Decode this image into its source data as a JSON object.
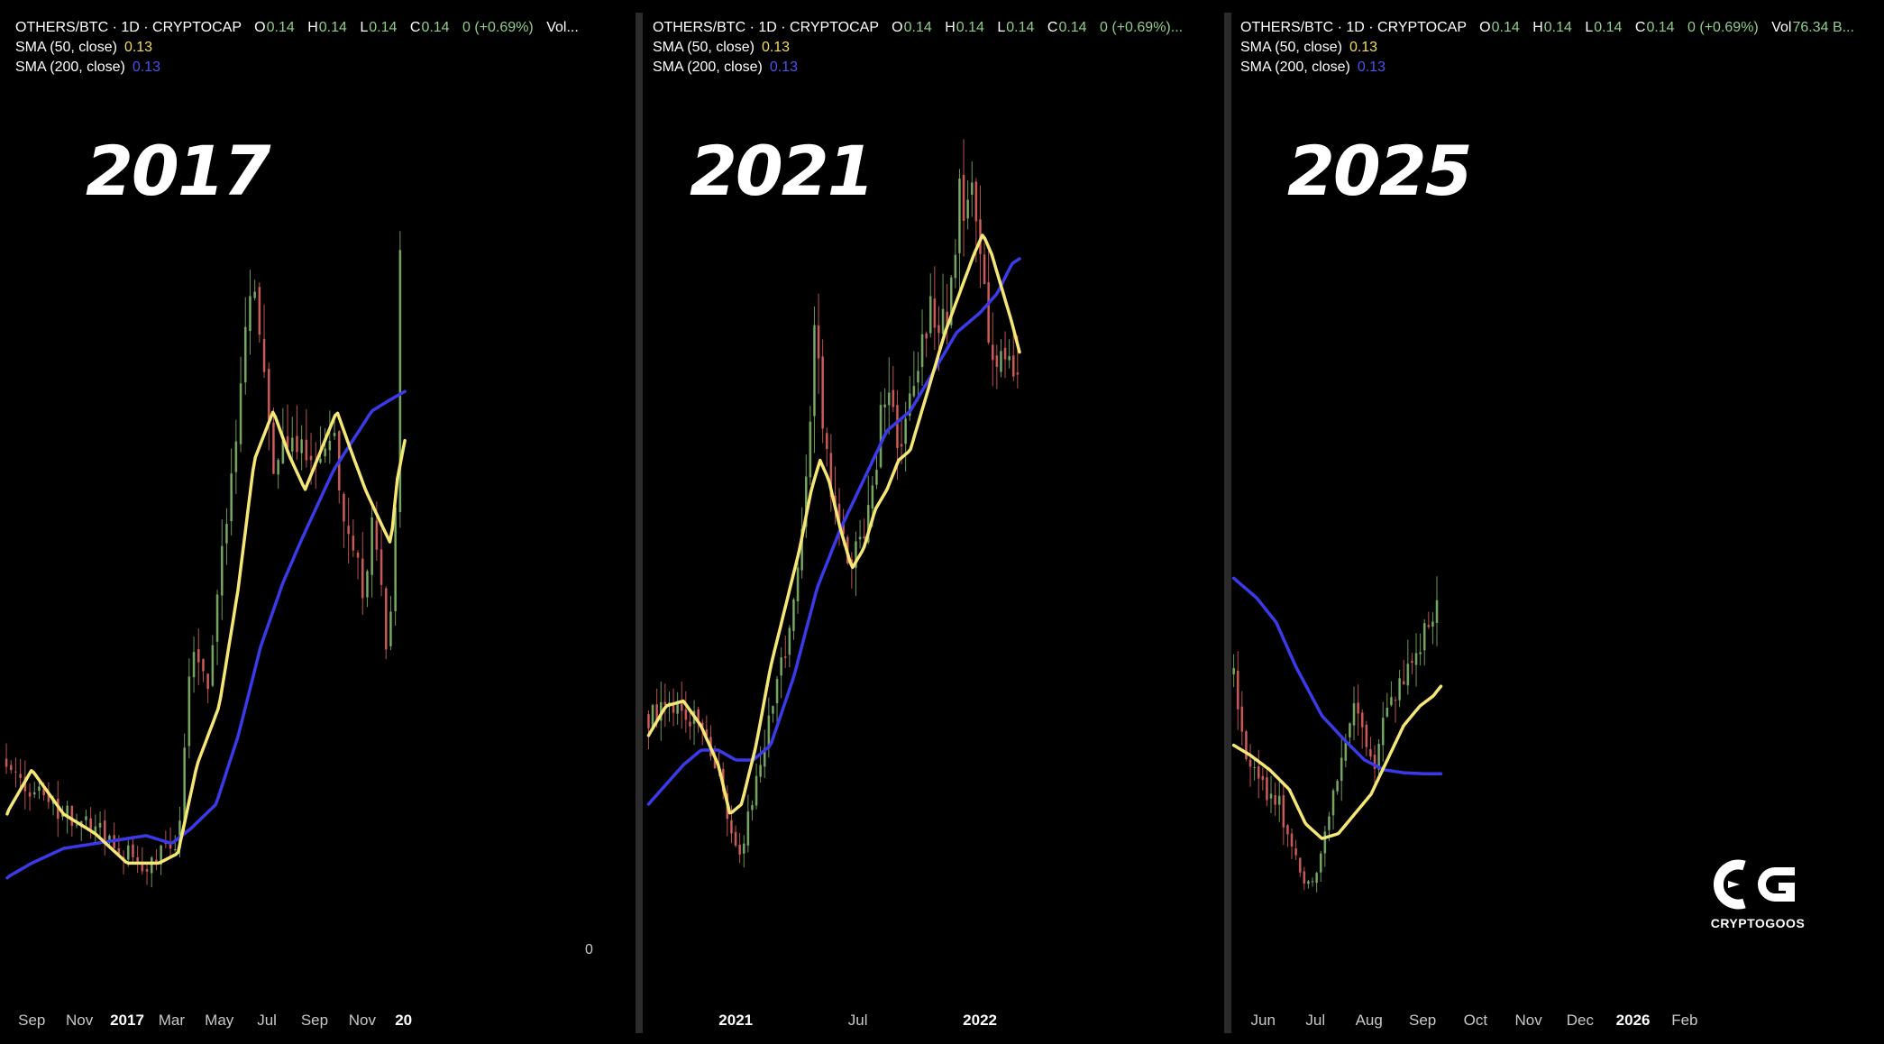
{
  "colors": {
    "background": "#000000",
    "candle_up": "#7fb36a",
    "candle_down": "#d9625e",
    "sma50": "#f5e776",
    "sma200": "#3a3ae8",
    "legend_value": "#8fce8a",
    "sma50_value": "#f2de5c",
    "sma200_value": "#4b52f0"
  },
  "panels": [
    {
      "big_year": "2017",
      "legend": {
        "title": "OTHERS/BTC · 1D · CRYPTOCAP",
        "o_label": "O",
        "o_value": "0.14",
        "h_label": "H",
        "h_value": "0.14",
        "l_label": "L",
        "l_value": "0.14",
        "c_label": "C",
        "c_value": "0.14",
        "change": "0 (+0.69%)",
        "vol_label": "Vol...",
        "vol_value": "",
        "sma50": "SMA (50, close)",
        "sma50_value": "0.13",
        "sma200": "SMA (200, close)",
        "sma200_value": "0.13"
      },
      "axis_label_zero": "0"
    },
    {
      "big_year": "2021",
      "legend": {
        "title": "OTHERS/BTC · 1D · CRYPTOCAP",
        "o_label": "O",
        "o_value": "0.14",
        "h_label": "H",
        "h_value": "0.14",
        "l_label": "L",
        "l_value": "0.14",
        "c_label": "C",
        "c_value": "0.14",
        "change": "0 (+0.69%)...",
        "vol_label": "",
        "vol_value": "",
        "sma50": "SMA (50, close)",
        "sma50_value": "0.13",
        "sma200": "SMA (200, close)",
        "sma200_value": "0.13"
      }
    },
    {
      "big_year": "2025",
      "legend": {
        "title": "OTHERS/BTC · 1D · CRYPTOCAP",
        "o_label": "O",
        "o_value": "0.14",
        "h_label": "H",
        "h_value": "0.14",
        "l_label": "L",
        "l_value": "0.14",
        "c_label": "C",
        "c_value": "0.14",
        "change": "0 (+0.69%)",
        "vol_label": "Vol",
        "vol_value": "76.34 B...",
        "sma50": "SMA (50, close)",
        "sma50_value": "0.13",
        "sma200": "SMA (200, close)",
        "sma200_value": "0.13"
      }
    }
  ],
  "logo": {
    "icon": "cryptogoos-cg-logo-icon",
    "text": "CRYPTOGOOS"
  },
  "chart_data": [
    {
      "type": "candlestick",
      "title": "OTHERS/BTC · 1D · CRYPTOCAP",
      "period_label": "2017",
      "x_ticks": [
        {
          "label": "Sep",
          "pos": 0.05,
          "bold": false
        },
        {
          "label": "Nov",
          "pos": 0.125,
          "bold": false
        },
        {
          "label": "2017",
          "pos": 0.2,
          "bold": true
        },
        {
          "label": "Mar",
          "pos": 0.27,
          "bold": false
        },
        {
          "label": "May",
          "pos": 0.345,
          "bold": false
        },
        {
          "label": "Jul",
          "pos": 0.42,
          "bold": false
        },
        {
          "label": "Sep",
          "pos": 0.495,
          "bold": false
        },
        {
          "label": "Nov",
          "pos": 0.57,
          "bold": false
        },
        {
          "label": "20",
          "pos": 0.635,
          "bold": true
        }
      ],
      "x_range": [
        0,
        1
      ],
      "ylim": [
        0,
        1
      ],
      "price_anchors": [
        [
          0.01,
          0.245
        ],
        [
          0.05,
          0.215
        ],
        [
          0.1,
          0.19
        ],
        [
          0.15,
          0.175
        ],
        [
          0.2,
          0.15
        ],
        [
          0.23,
          0.13
        ],
        [
          0.26,
          0.155
        ],
        [
          0.28,
          0.16
        ],
        [
          0.3,
          0.355
        ],
        [
          0.325,
          0.315
        ],
        [
          0.345,
          0.435
        ],
        [
          0.36,
          0.5
        ],
        [
          0.375,
          0.6
        ],
        [
          0.395,
          0.73
        ],
        [
          0.405,
          0.69
        ],
        [
          0.42,
          0.6
        ],
        [
          0.43,
          0.54
        ],
        [
          0.445,
          0.58
        ],
        [
          0.465,
          0.55
        ],
        [
          0.485,
          0.56
        ],
        [
          0.505,
          0.565
        ],
        [
          0.52,
          0.58
        ],
        [
          0.535,
          0.53
        ],
        [
          0.55,
          0.47
        ],
        [
          0.565,
          0.43
        ],
        [
          0.575,
          0.39
        ],
        [
          0.585,
          0.5
        ],
        [
          0.6,
          0.42
        ],
        [
          0.61,
          0.355
        ],
        [
          0.62,
          0.45
        ],
        [
          0.628,
          0.7
        ],
        [
          0.636,
          0.96
        ]
      ],
      "sma50_anchors": [
        [
          0.01,
          0.19
        ],
        [
          0.05,
          0.235
        ],
        [
          0.1,
          0.19
        ],
        [
          0.15,
          0.17
        ],
        [
          0.2,
          0.14
        ],
        [
          0.25,
          0.14
        ],
        [
          0.28,
          0.15
        ],
        [
          0.31,
          0.24
        ],
        [
          0.345,
          0.3
        ],
        [
          0.375,
          0.42
        ],
        [
          0.4,
          0.55
        ],
        [
          0.43,
          0.6
        ],
        [
          0.455,
          0.555
        ],
        [
          0.48,
          0.52
        ],
        [
          0.505,
          0.56
        ],
        [
          0.53,
          0.6
        ],
        [
          0.555,
          0.555
        ],
        [
          0.575,
          0.52
        ],
        [
          0.6,
          0.485
        ],
        [
          0.615,
          0.465
        ],
        [
          0.625,
          0.53
        ],
        [
          0.637,
          0.57
        ]
      ],
      "sma200_anchors": [
        [
          0.01,
          0.125
        ],
        [
          0.05,
          0.14
        ],
        [
          0.1,
          0.155
        ],
        [
          0.15,
          0.16
        ],
        [
          0.2,
          0.165
        ],
        [
          0.23,
          0.168
        ],
        [
          0.27,
          0.16
        ],
        [
          0.3,
          0.175
        ],
        [
          0.34,
          0.2
        ],
        [
          0.375,
          0.27
        ],
        [
          0.41,
          0.36
        ],
        [
          0.445,
          0.425
        ],
        [
          0.475,
          0.47
        ],
        [
          0.5,
          0.505
        ],
        [
          0.525,
          0.54
        ],
        [
          0.555,
          0.57
        ],
        [
          0.585,
          0.6
        ],
        [
          0.61,
          0.61
        ],
        [
          0.637,
          0.62
        ]
      ],
      "sma50_label": "SMA (50, close)",
      "sma200_label": "SMA (200, close)"
    },
    {
      "type": "candlestick",
      "title": "OTHERS/BTC · 1D · CRYPTOCAP",
      "period_label": "2021",
      "x_ticks": [
        {
          "label": "2021",
          "pos": 0.16,
          "bold": true
        },
        {
          "label": "Jul",
          "pos": 0.37,
          "bold": false
        },
        {
          "label": "2022",
          "pos": 0.58,
          "bold": true
        }
      ],
      "x_range": [
        0,
        1
      ],
      "ylim": [
        0,
        1
      ],
      "price_anchors": [
        [
          0.01,
          0.29
        ],
        [
          0.04,
          0.3
        ],
        [
          0.07,
          0.295
        ],
        [
          0.1,
          0.275
        ],
        [
          0.13,
          0.23
        ],
        [
          0.15,
          0.17
        ],
        [
          0.17,
          0.15
        ],
        [
          0.19,
          0.21
        ],
        [
          0.22,
          0.29
        ],
        [
          0.25,
          0.37
        ],
        [
          0.27,
          0.45
        ],
        [
          0.285,
          0.56
        ],
        [
          0.295,
          0.68
        ],
        [
          0.305,
          0.62
        ],
        [
          0.32,
          0.54
        ],
        [
          0.335,
          0.48
        ],
        [
          0.355,
          0.44
        ],
        [
          0.375,
          0.47
        ],
        [
          0.395,
          0.52
        ],
        [
          0.41,
          0.59
        ],
        [
          0.42,
          0.63
        ],
        [
          0.435,
          0.57
        ],
        [
          0.45,
          0.59
        ],
        [
          0.465,
          0.62
        ],
        [
          0.48,
          0.66
        ],
        [
          0.49,
          0.69
        ],
        [
          0.505,
          0.71
        ],
        [
          0.52,
          0.68
        ],
        [
          0.535,
          0.76
        ],
        [
          0.545,
          0.82
        ],
        [
          0.555,
          0.79
        ],
        [
          0.565,
          0.86
        ],
        [
          0.575,
          0.8
        ],
        [
          0.585,
          0.72
        ],
        [
          0.595,
          0.69
        ],
        [
          0.605,
          0.66
        ],
        [
          0.62,
          0.64
        ],
        [
          0.635,
          0.655
        ],
        [
          0.648,
          0.66
        ]
      ],
      "sma50_anchors": [
        [
          0.01,
          0.27
        ],
        [
          0.04,
          0.3
        ],
        [
          0.07,
          0.305
        ],
        [
          0.1,
          0.28
        ],
        [
          0.13,
          0.24
        ],
        [
          0.15,
          0.19
        ],
        [
          0.17,
          0.2
        ],
        [
          0.195,
          0.26
        ],
        [
          0.22,
          0.34
        ],
        [
          0.245,
          0.4
        ],
        [
          0.27,
          0.46
        ],
        [
          0.29,
          0.52
        ],
        [
          0.305,
          0.55
        ],
        [
          0.32,
          0.53
        ],
        [
          0.34,
          0.48
        ],
        [
          0.36,
          0.44
        ],
        [
          0.38,
          0.46
        ],
        [
          0.4,
          0.5
        ],
        [
          0.42,
          0.52
        ],
        [
          0.44,
          0.55
        ],
        [
          0.46,
          0.56
        ],
        [
          0.48,
          0.6
        ],
        [
          0.5,
          0.64
        ],
        [
          0.52,
          0.68
        ],
        [
          0.545,
          0.72
        ],
        [
          0.57,
          0.76
        ],
        [
          0.585,
          0.78
        ],
        [
          0.6,
          0.76
        ],
        [
          0.62,
          0.72
        ],
        [
          0.635,
          0.69
        ],
        [
          0.648,
          0.66
        ]
      ],
      "sma200_anchors": [
        [
          0.01,
          0.2
        ],
        [
          0.04,
          0.22
        ],
        [
          0.07,
          0.24
        ],
        [
          0.1,
          0.255
        ],
        [
          0.13,
          0.255
        ],
        [
          0.16,
          0.245
        ],
        [
          0.19,
          0.245
        ],
        [
          0.22,
          0.26
        ],
        [
          0.26,
          0.33
        ],
        [
          0.3,
          0.42
        ],
        [
          0.34,
          0.48
        ],
        [
          0.38,
          0.53
        ],
        [
          0.42,
          0.58
        ],
        [
          0.46,
          0.6
        ],
        [
          0.5,
          0.64
        ],
        [
          0.54,
          0.68
        ],
        [
          0.58,
          0.7
        ],
        [
          0.61,
          0.72
        ],
        [
          0.635,
          0.75
        ],
        [
          0.648,
          0.755
        ]
      ],
      "sma50_label": "SMA (50, close)",
      "sma200_label": "SMA (200, close)"
    },
    {
      "type": "candlestick",
      "title": "OTHERS/BTC · 1D · CRYPTOCAP",
      "period_label": "2025",
      "x_ticks": [
        {
          "label": "Jun",
          "pos": 0.05,
          "bold": false
        },
        {
          "label": "Jul",
          "pos": 0.13,
          "bold": false
        },
        {
          "label": "Aug",
          "pos": 0.212,
          "bold": false
        },
        {
          "label": "Sep",
          "pos": 0.294,
          "bold": false
        },
        {
          "label": "Oct",
          "pos": 0.375,
          "bold": false
        },
        {
          "label": "Nov",
          "pos": 0.456,
          "bold": false
        },
        {
          "label": "Dec",
          "pos": 0.535,
          "bold": false
        },
        {
          "label": "2026",
          "pos": 0.616,
          "bold": true
        },
        {
          "label": "Feb",
          "pos": 0.695,
          "bold": false
        }
      ],
      "x_range": [
        0,
        1
      ],
      "ylim": [
        0,
        1
      ],
      "price_anchors": [
        [
          0.005,
          0.33
        ],
        [
          0.02,
          0.26
        ],
        [
          0.04,
          0.24
        ],
        [
          0.06,
          0.2
        ],
        [
          0.075,
          0.2
        ],
        [
          0.09,
          0.16
        ],
        [
          0.11,
          0.13
        ],
        [
          0.125,
          0.12
        ],
        [
          0.14,
          0.15
        ],
        [
          0.155,
          0.2
        ],
        [
          0.165,
          0.23
        ],
        [
          0.18,
          0.29
        ],
        [
          0.19,
          0.31
        ],
        [
          0.205,
          0.265
        ],
        [
          0.22,
          0.24
        ],
        [
          0.235,
          0.28
        ],
        [
          0.25,
          0.31
        ],
        [
          0.265,
          0.335
        ],
        [
          0.28,
          0.36
        ],
        [
          0.295,
          0.37
        ],
        [
          0.31,
          0.395
        ],
        [
          0.322,
          0.43
        ]
      ],
      "sma50_anchors": [
        [
          0.005,
          0.26
        ],
        [
          0.03,
          0.25
        ],
        [
          0.06,
          0.235
        ],
        [
          0.09,
          0.215
        ],
        [
          0.115,
          0.18
        ],
        [
          0.14,
          0.165
        ],
        [
          0.165,
          0.17
        ],
        [
          0.19,
          0.19
        ],
        [
          0.215,
          0.21
        ],
        [
          0.24,
          0.245
        ],
        [
          0.265,
          0.28
        ],
        [
          0.29,
          0.3
        ],
        [
          0.31,
          0.31
        ],
        [
          0.322,
          0.32
        ]
      ],
      "sma200_anchors": [
        [
          0.005,
          0.43
        ],
        [
          0.04,
          0.41
        ],
        [
          0.07,
          0.385
        ],
        [
          0.1,
          0.34
        ],
        [
          0.14,
          0.29
        ],
        [
          0.175,
          0.265
        ],
        [
          0.205,
          0.245
        ],
        [
          0.235,
          0.235
        ],
        [
          0.265,
          0.232
        ],
        [
          0.295,
          0.231
        ],
        [
          0.322,
          0.231
        ]
      ],
      "sma50_label": "SMA (50, close)",
      "sma200_label": "SMA (200, close)"
    }
  ]
}
